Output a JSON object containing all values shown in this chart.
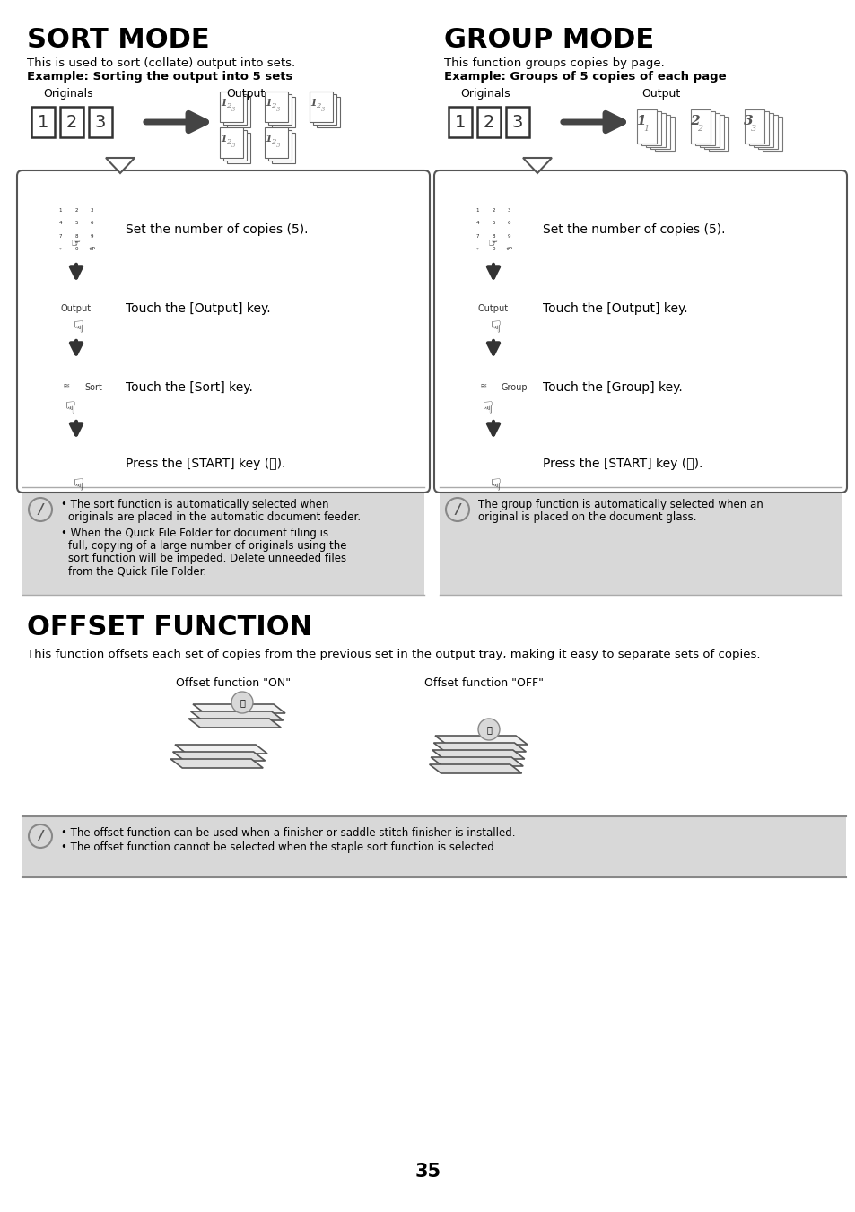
{
  "page_bg": "#ffffff",
  "sort_mode_title": "SORT MODE",
  "group_mode_title": "GROUP MODE",
  "offset_function_title": "OFFSET FUNCTION",
  "sort_desc": "This is used to sort (collate) output into sets.",
  "sort_example": "Example: Sorting the output into 5 sets",
  "group_desc": "This function groups copies by page.",
  "group_example": "Example: Groups of 5 copies of each page",
  "offset_desc": "This function offsets each set of copies from the previous set in the output tray, making it easy to separate sets of copies.",
  "sort_step1": "Set the number of copies (5).",
  "sort_step2": "Touch the [Output] key.",
  "sort_step3": "Touch the [Sort] key.",
  "sort_step4": "Press the [START] key (Ⓢ).",
  "group_step1": "Set the number of copies (5).",
  "group_step2": "Touch the [Output] key.",
  "group_step3": "Touch the [Group] key.",
  "group_step4": "Press the [START] key (Ⓢ).",
  "sort_note1a": "The sort function is automatically selected when",
  "sort_note1b": "originals are placed in the automatic document feeder.",
  "sort_note2a": "When the Quick File Folder for document filing is",
  "sort_note2b": "full, copying of a large number of originals using the",
  "sort_note2c": "sort function will be impeded. Delete unneeded files",
  "sort_note2d": "from the Quick File Folder.",
  "group_note1": "The group function is automatically selected when an",
  "group_note2": "original is placed on the document glass.",
  "offset_note1": "The offset function can be used when a finisher or saddle stitch finisher is installed.",
  "offset_note2": "The offset function cannot be selected when the staple sort function is selected.",
  "originals_label": "Originals",
  "output_label": "Output",
  "offset_on_label": "Offset function \"ON\"",
  "offset_off_label": "Offset function \"OFF\"",
  "page_number": "35"
}
